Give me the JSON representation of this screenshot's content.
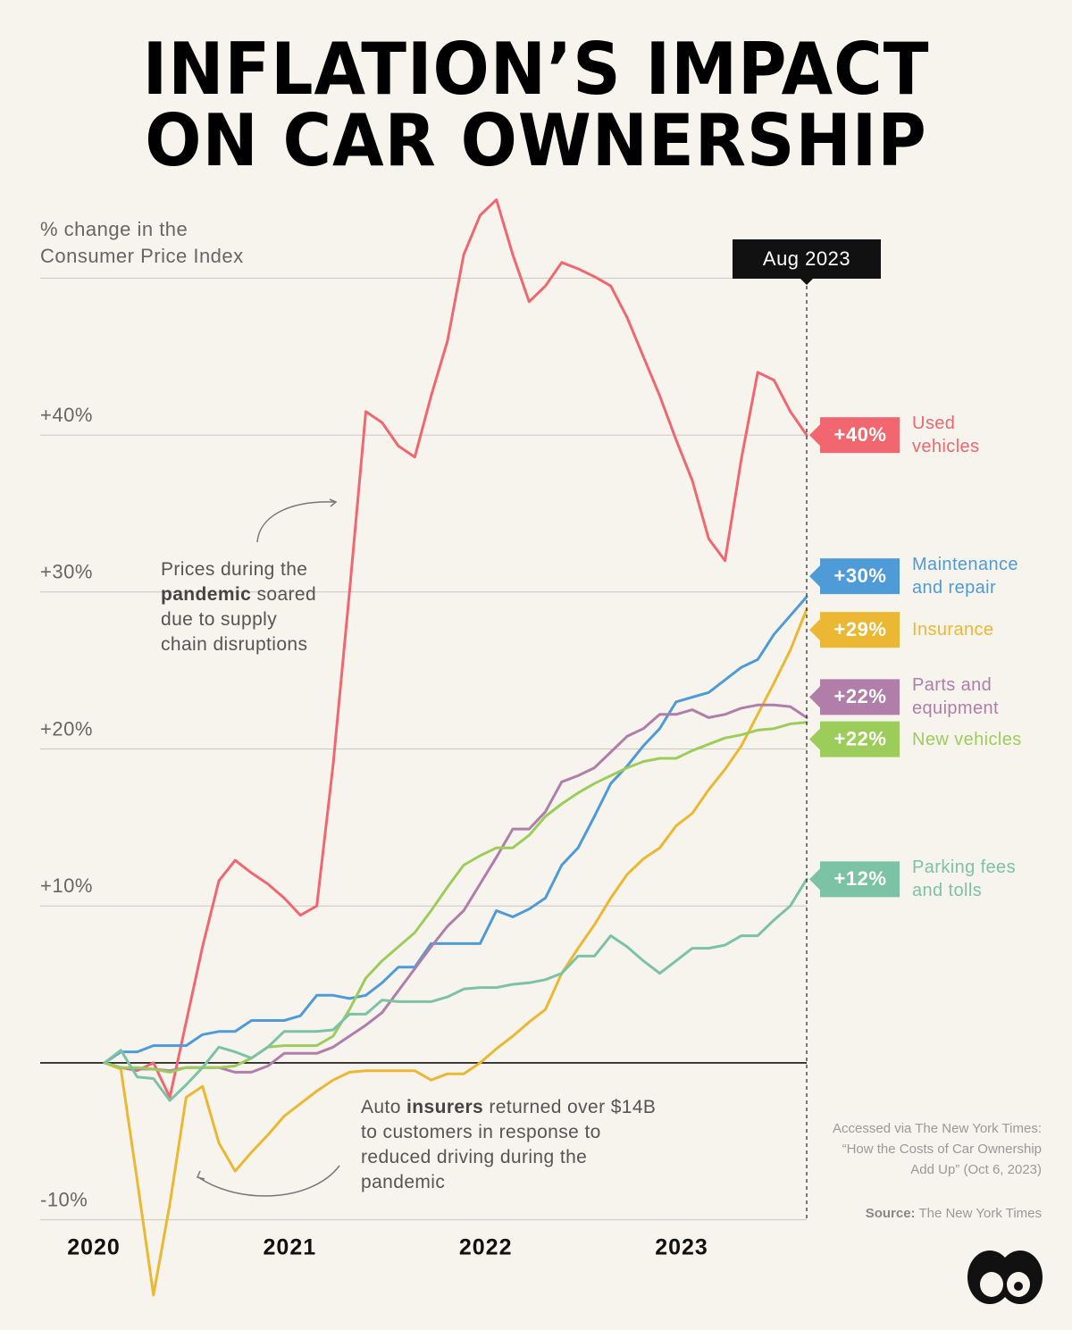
{
  "chart_data": {
    "type": "line",
    "title": "INFLATION’S IMPACT\nON CAR OWNERSHIP",
    "y_label": "% change in the\nConsumer Price Index",
    "end_marker": "Aug 2023",
    "categories": [
      "2020",
      null,
      null,
      null,
      null,
      null,
      null,
      null,
      null,
      null,
      null,
      null,
      "2021",
      null,
      null,
      null,
      null,
      null,
      null,
      null,
      null,
      null,
      null,
      null,
      "2022",
      null,
      null,
      null,
      null,
      null,
      null,
      null,
      null,
      null,
      null,
      null,
      "2023",
      null,
      null,
      null,
      null,
      null,
      null,
      null
    ],
    "ylim": [
      -16,
      56
    ],
    "yticks": [
      {
        "value": -10,
        "label": "-10%"
      },
      {
        "value": 0,
        "label": null
      },
      {
        "value": 10,
        "label": "+10%"
      },
      {
        "value": 20,
        "label": "+20%"
      },
      {
        "value": 30,
        "label": "+30%"
      },
      {
        "value": 40,
        "label": "+40%"
      },
      {
        "value": 50,
        "label": null
      }
    ],
    "grid": true,
    "series": [
      {
        "name": "Used\nvehicles",
        "color": "#f2676f",
        "end_label": "+40%",
        "values": [
          0,
          -0.3,
          -0.5,
          0,
          -2.2,
          2.6,
          7.4,
          11.6,
          12.9,
          12.1,
          11.4,
          10.5,
          9.4,
          10,
          19,
          30,
          41.5,
          40.8,
          39.3,
          38.6,
          42.5,
          46,
          51.5,
          54,
          55,
          51.5,
          48.5,
          49.5,
          51,
          50.6,
          50.1,
          49.5,
          47.5,
          45,
          42.5,
          39.7,
          37.1,
          33.4,
          32,
          38.5,
          44,
          43.5,
          41.5,
          40
        ]
      },
      {
        "name": "Maintenance\nand repair",
        "color": "#4f9bd8",
        "end_label": "+30%",
        "values": [
          0,
          0.7,
          0.7,
          1.1,
          1.1,
          1.1,
          1.8,
          2,
          2,
          2.7,
          2.7,
          2.7,
          3,
          4.3,
          4.3,
          4.1,
          4.3,
          5.1,
          6.1,
          6.1,
          7.6,
          7.6,
          7.6,
          7.6,
          9.7,
          9.3,
          9.8,
          10.5,
          12.6,
          13.7,
          15.7,
          17.8,
          18.9,
          20.2,
          21.3,
          23,
          23.3,
          23.6,
          24.4,
          25.2,
          25.7,
          27.3,
          28.5,
          29.7
        ]
      },
      {
        "name": "Insurance",
        "color": "#ecb833",
        "end_label": "+29%",
        "values": [
          0,
          -0.4,
          -7.5,
          -14.8,
          -9,
          -2.2,
          -1.5,
          -5.1,
          -6.9,
          -5.7,
          -4.6,
          -3.4,
          -2.6,
          -1.8,
          -1.1,
          -0.6,
          -0.5,
          -0.5,
          -0.5,
          -0.5,
          -1.1,
          -0.7,
          -0.7,
          0,
          0.9,
          1.7,
          2.6,
          3.4,
          5.7,
          7.3,
          8.8,
          10.5,
          12,
          13,
          13.7,
          15.1,
          15.9,
          17.4,
          18.7,
          20.2,
          22.2,
          24.2,
          26.3,
          28.9
        ]
      },
      {
        "name": "Parts and\nequipment",
        "color": "#b07ea8",
        "end_label": "+22%",
        "values": [
          0,
          -0.3,
          -0.4,
          -0.4,
          -0.5,
          -0.3,
          -0.3,
          -0.3,
          -0.6,
          -0.6,
          -0.2,
          0.6,
          0.6,
          0.6,
          1,
          1.7,
          2.4,
          3.2,
          4.6,
          6,
          7.4,
          8.7,
          9.7,
          11.4,
          13.1,
          14.9,
          14.9,
          16,
          17.9,
          18.3,
          18.8,
          19.8,
          20.8,
          21.3,
          22.2,
          22.2,
          22.5,
          22,
          22.2,
          22.6,
          22.8,
          22.8,
          22.7,
          22
        ]
      },
      {
        "name": "New vehicles",
        "color": "#9ccd5a",
        "end_label": "+22%",
        "values": [
          0,
          -0.3,
          -0.3,
          -0.4,
          -0.6,
          -0.3,
          -0.3,
          -0.3,
          -0.2,
          0.3,
          1,
          1.1,
          1.1,
          1.1,
          1.7,
          3.4,
          5.4,
          6.5,
          7.4,
          8.3,
          9.7,
          11.2,
          12.6,
          13.2,
          13.7,
          13.7,
          14.5,
          15.7,
          16.5,
          17.2,
          17.8,
          18.3,
          18.8,
          19.2,
          19.4,
          19.4,
          19.9,
          20.3,
          20.7,
          20.9,
          21.2,
          21.3,
          21.6,
          21.7
        ]
      },
      {
        "name": "Parking fees\nand tolls",
        "color": "#7cc2a4",
        "end_label": "+12%",
        "values": [
          0,
          0.8,
          -0.9,
          -1,
          -2.4,
          -1.4,
          -0.3,
          1,
          0.7,
          0.3,
          1,
          2,
          2,
          2,
          2.1,
          3.1,
          3.1,
          4,
          3.9,
          3.9,
          3.9,
          4.2,
          4.7,
          4.8,
          4.8,
          5,
          5.1,
          5.3,
          5.7,
          6.8,
          6.8,
          8.1,
          7.4,
          6.5,
          5.7,
          6.5,
          7.3,
          7.3,
          7.5,
          8.1,
          8.1,
          9.1,
          10,
          11.7
        ]
      }
    ],
    "annotations": [
      {
        "before": "Prices during the ",
        "bold": "pandemic",
        "after": " soared due to supply chain disruptions"
      },
      {
        "before": "Auto ",
        "bold": "insurers",
        "after": " returned over $14B to customers in response to reduced driving during the pandemic"
      }
    ],
    "note": "Accessed via The New York Times: “How the Costs of Car Ownership Add Up” (Oct 6, 2023)",
    "source_label": "Source:",
    "source": " The New York Times"
  }
}
